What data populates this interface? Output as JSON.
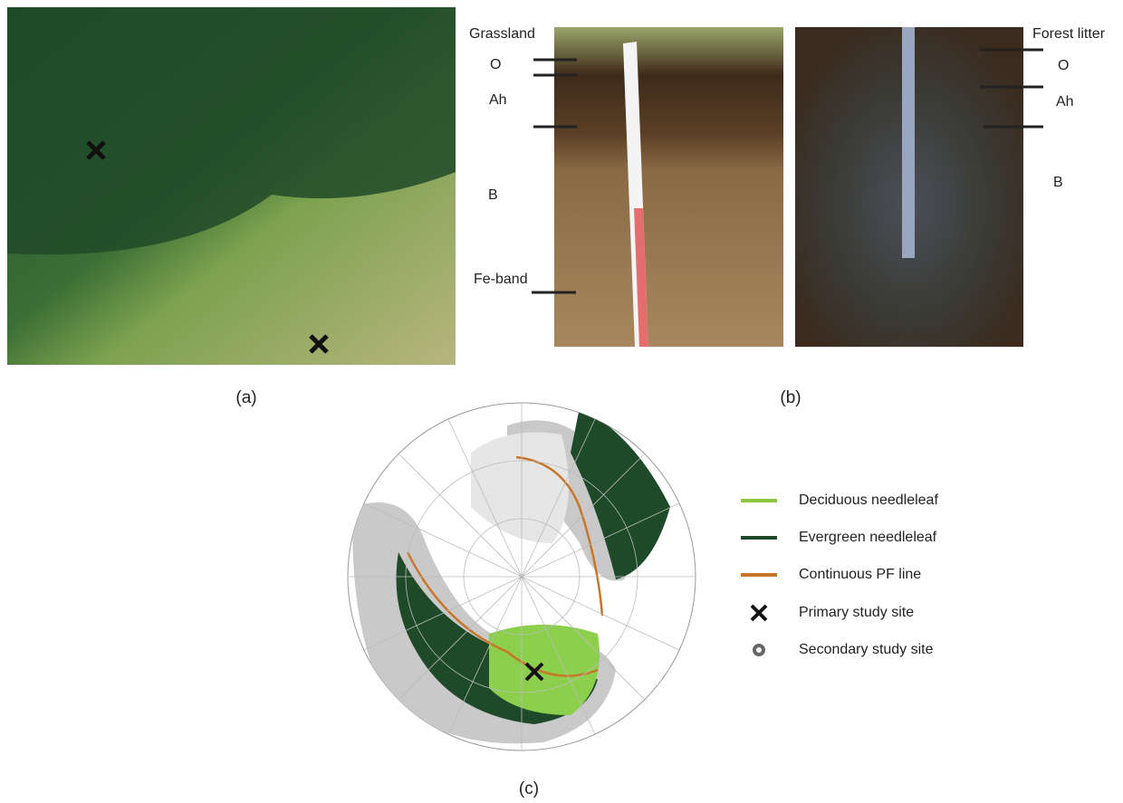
{
  "panel_a": {
    "label": "(a)"
  },
  "panel_b": {
    "label": "(b)",
    "left_profile": {
      "title": "Grassland",
      "horizons": [
        "O",
        "Ah",
        "B",
        "Fe-band"
      ]
    },
    "right_profile": {
      "title": "Forest litter",
      "horizons": [
        "O",
        "Ah",
        "B"
      ]
    }
  },
  "panel_c": {
    "label": "(c)",
    "legend": [
      "Deciduous needleleaf",
      "Evergreen needleleaf",
      "Continuous PF line",
      "Primary study site",
      "Secondary study site"
    ]
  }
}
